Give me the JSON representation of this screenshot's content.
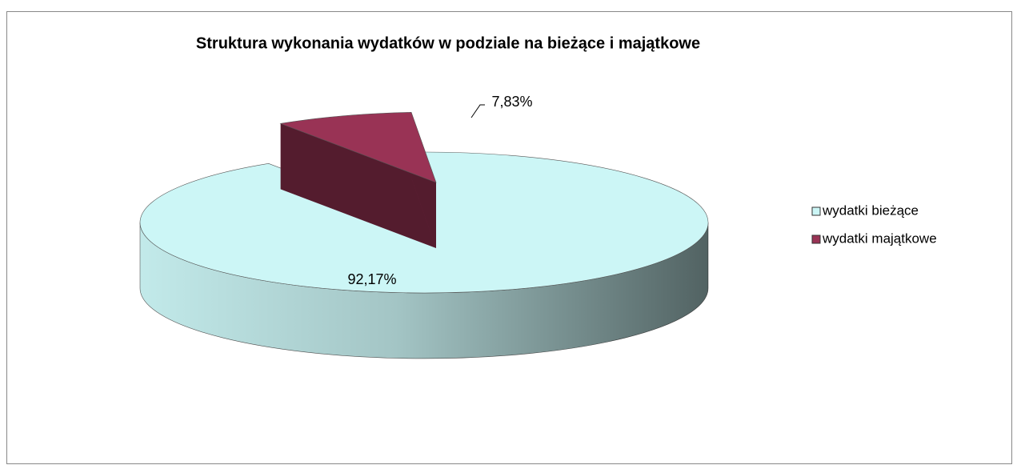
{
  "chart_data": {
    "type": "pie",
    "title": "Struktura wykonania wydatków w podziale na bieżące i majątkowe",
    "categories": [
      "wydatki bieżące",
      "wydatki majątkowe"
    ],
    "values": [
      92.17,
      7.83
    ],
    "value_labels": [
      "92,17%",
      "7,83%"
    ],
    "colors": [
      "#ccf6f6",
      "#993355"
    ],
    "legend": "right"
  }
}
